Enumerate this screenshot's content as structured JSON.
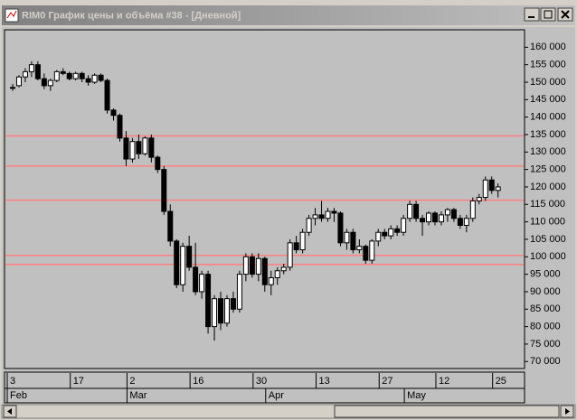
{
  "chart_data": {
    "type": "candlestick",
    "title": "RIM0 График цены и объёма #38 - [Дневной]",
    "open": [
      148500,
      149000,
      151500,
      153000,
      155000,
      151000,
      149000,
      150500,
      153000,
      152500,
      151000,
      152500,
      151000,
      150000,
      152000,
      150500,
      142000,
      140500,
      134000,
      128000,
      133000,
      129500,
      134000,
      128500,
      125000,
      113000,
      104500,
      92000,
      103000,
      97000,
      90000,
      95000,
      80000,
      88000,
      81000,
      88000,
      85000,
      95000,
      100000,
      95000,
      99500,
      92000,
      94000,
      96000,
      97000,
      104000,
      102000,
      107000,
      111000,
      112000,
      111000,
      113000,
      112500,
      104000,
      107000,
      102000,
      103000,
      99000,
      104500,
      107000,
      106000,
      108000,
      107000,
      111000,
      115000,
      111000,
      110000,
      112500,
      110000,
      112000,
      113500,
      111000,
      109000,
      111000,
      116000,
      117000,
      122000,
      119000
    ],
    "high": [
      149500,
      152000,
      154000,
      156000,
      156000,
      152500,
      151000,
      153500,
      154000,
      153000,
      153000,
      153000,
      152000,
      152500,
      152500,
      151000,
      142500,
      141000,
      136000,
      134000,
      135000,
      134500,
      135000,
      129000,
      126000,
      115000,
      105000,
      104000,
      106000,
      104000,
      96000,
      96000,
      89000,
      90000,
      89000,
      90000,
      96000,
      101000,
      101000,
      101000,
      100000,
      96000,
      97000,
      98000,
      105000,
      106000,
      108000,
      112000,
      114000,
      116000,
      114000,
      114000,
      113000,
      108000,
      108000,
      105000,
      103500,
      105000,
      108000,
      108000,
      109000,
      109000,
      112000,
      116000,
      116000,
      112000,
      113000,
      113000,
      113000,
      114000,
      114000,
      112000,
      112000,
      117000,
      118000,
      123000,
      123000,
      121000
    ],
    "low": [
      147500,
      148500,
      150000,
      151500,
      150500,
      148000,
      147500,
      150000,
      152000,
      150500,
      150500,
      150000,
      149000,
      149500,
      150000,
      141000,
      139000,
      133000,
      126000,
      127000,
      128000,
      129000,
      127000,
      124000,
      112000,
      103000,
      91000,
      90000,
      96000,
      89000,
      88000,
      78000,
      76000,
      79000,
      80000,
      84000,
      84000,
      93000,
      94000,
      93000,
      90000,
      89000,
      92000,
      95000,
      96000,
      101000,
      101000,
      106000,
      109000,
      110000,
      110000,
      110000,
      103000,
      102000,
      101000,
      101000,
      98000,
      98000,
      103000,
      105000,
      105000,
      106000,
      106000,
      110000,
      110000,
      106000,
      109000,
      109000,
      109000,
      110000,
      110000,
      108000,
      107000,
      110000,
      115000,
      116000,
      118000,
      117000
    ],
    "close": [
      148500,
      151500,
      153000,
      155000,
      151000,
      149000,
      150500,
      153000,
      152500,
      151000,
      152500,
      151000,
      150000,
      152000,
      150500,
      142000,
      140500,
      134000,
      128000,
      133000,
      129500,
      134000,
      128500,
      125000,
      113000,
      104500,
      92000,
      103000,
      97000,
      90000,
      95000,
      80000,
      88000,
      81000,
      88000,
      85000,
      95000,
      100000,
      95000,
      99500,
      92000,
      94000,
      96000,
      97000,
      104000,
      102000,
      107000,
      111000,
      112000,
      111000,
      113000,
      112500,
      104000,
      107000,
      102000,
      103000,
      99000,
      104500,
      107000,
      106000,
      108000,
      107000,
      111000,
      115000,
      111000,
      110000,
      112500,
      110000,
      112000,
      113500,
      111000,
      109000,
      111000,
      116000,
      117000,
      122000,
      119000,
      120000
    ],
    "up_color": "#ffffff",
    "down_color": "#000000",
    "level_color": "#ff8080",
    "levels": [
      134600,
      126000,
      116200,
      100400,
      97800
    ],
    "ylim": [
      68000,
      165000
    ],
    "yticks": [
      {
        "value": 160000,
        "label": "160 000"
      },
      {
        "value": 155000,
        "label": "155 000"
      },
      {
        "value": 150000,
        "label": "150 000"
      },
      {
        "value": 145000,
        "label": "145 000"
      },
      {
        "value": 140000,
        "label": "140 000"
      },
      {
        "value": 135000,
        "label": "135 000"
      },
      {
        "value": 130000,
        "label": "130 000"
      },
      {
        "value": 125000,
        "label": "125 000"
      },
      {
        "value": 120000,
        "label": "120 000"
      },
      {
        "value": 115000,
        "label": "115 000"
      },
      {
        "value": 110000,
        "label": "110 000"
      },
      {
        "value": 105000,
        "label": "105 000"
      },
      {
        "value": 100000,
        "label": "100 000"
      },
      {
        "value": 95000,
        "label": "95 000"
      },
      {
        "value": 90000,
        "label": "90 000"
      },
      {
        "value": 85000,
        "label": "85 000"
      },
      {
        "value": 80000,
        "label": "80 000"
      },
      {
        "value": 75000,
        "label": "75 000"
      },
      {
        "value": 70000,
        "label": "70 000"
      }
    ],
    "xticks": [
      {
        "value": 0,
        "label": "3"
      },
      {
        "value": 10,
        "label": "17"
      },
      {
        "value": 19,
        "label": "2"
      },
      {
        "value": 29,
        "label": "16"
      },
      {
        "value": 39,
        "label": "30"
      },
      {
        "value": 49,
        "label": "13"
      },
      {
        "value": 59,
        "label": "27"
      },
      {
        "value": 68,
        "label": "12"
      },
      {
        "value": 77,
        "label": "25"
      }
    ],
    "month_ticks": [
      {
        "value": 0,
        "label": "Feb"
      },
      {
        "value": 19,
        "label": "Mar"
      },
      {
        "value": 41,
        "label": "Apr"
      },
      {
        "value": 63,
        "label": "May"
      }
    ]
  }
}
